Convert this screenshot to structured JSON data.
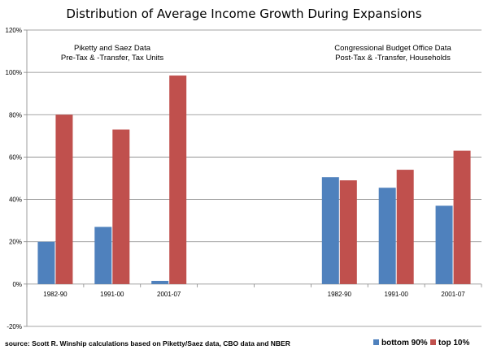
{
  "chart_data": {
    "type": "bar",
    "title": "Distribution of Average Income Growth During Expansions",
    "xlabel": "",
    "ylabel": "",
    "ylim": [
      -0.2,
      1.2
    ],
    "yticks": [
      "-20%",
      "0%",
      "20%",
      "40%",
      "60%",
      "80%",
      "100%",
      "120%"
    ],
    "categories": [
      "1982-90",
      "1991-00",
      "2001-07",
      "",
      "",
      "1982-90",
      "1991-00",
      "2001-07"
    ],
    "series": [
      {
        "name": "bottom 90%",
        "color": "#4f81bd",
        "values": [
          0.2,
          0.27,
          0.015,
          null,
          null,
          0.505,
          0.455,
          0.37
        ]
      },
      {
        "name": "top 10%",
        "color": "#c0504d",
        "values": [
          0.8,
          0.73,
          0.985,
          null,
          null,
          0.49,
          0.54,
          0.63
        ]
      }
    ],
    "grid": true,
    "legend_position": "bottom-right",
    "annotations": [
      {
        "line1": "Piketty and Saez Data",
        "line2": "Pre-Tax & -Transfer, Tax Units"
      },
      {
        "line1": "Congressional Budget Office Data",
        "line2": "Post-Tax & -Transfer, Households"
      }
    ],
    "source": "source: Scott R. Winship calculations based on Piketty/Saez data, CBO data and NBER"
  }
}
